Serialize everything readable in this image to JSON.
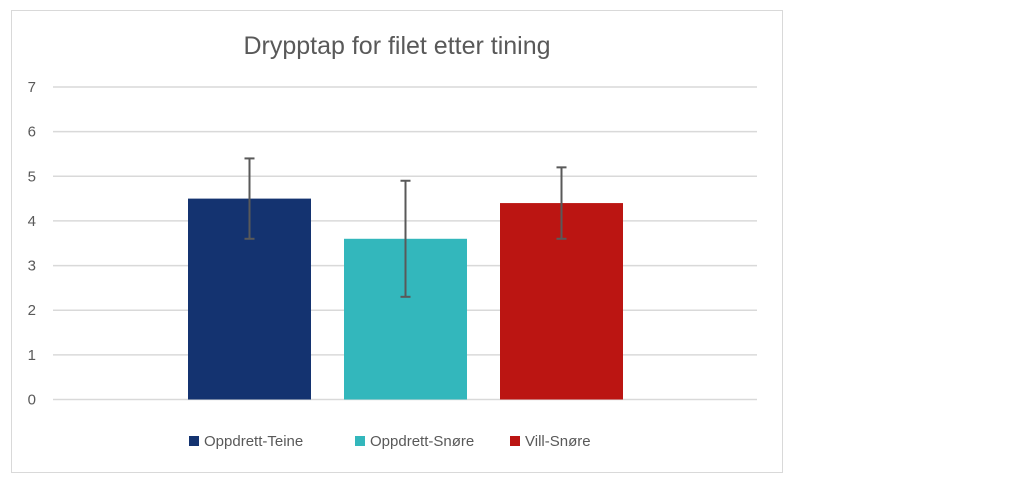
{
  "chart_data": {
    "type": "bar",
    "title": "Drypptap for filet etter tining",
    "categories": [
      ""
    ],
    "series": [
      {
        "name": "Oppdrett-Teine",
        "values": [
          4.5
        ],
        "error": [
          0.9
        ],
        "color": "#143370"
      },
      {
        "name": "Oppdrett-Snøre",
        "values": [
          3.6
        ],
        "error": [
          1.3
        ],
        "color": "#33b7bc"
      },
      {
        "name": "Vill-Snøre",
        "values": [
          4.4
        ],
        "error": [
          0.8
        ],
        "color": "#bb1512"
      }
    ],
    "ylim": [
      0,
      7
    ],
    "yticks": [
      "0",
      "1",
      "2",
      "3",
      "4",
      "5",
      "6",
      "7"
    ],
    "xlabel": "",
    "ylabel": "",
    "grid": true,
    "legend": "bottom"
  }
}
